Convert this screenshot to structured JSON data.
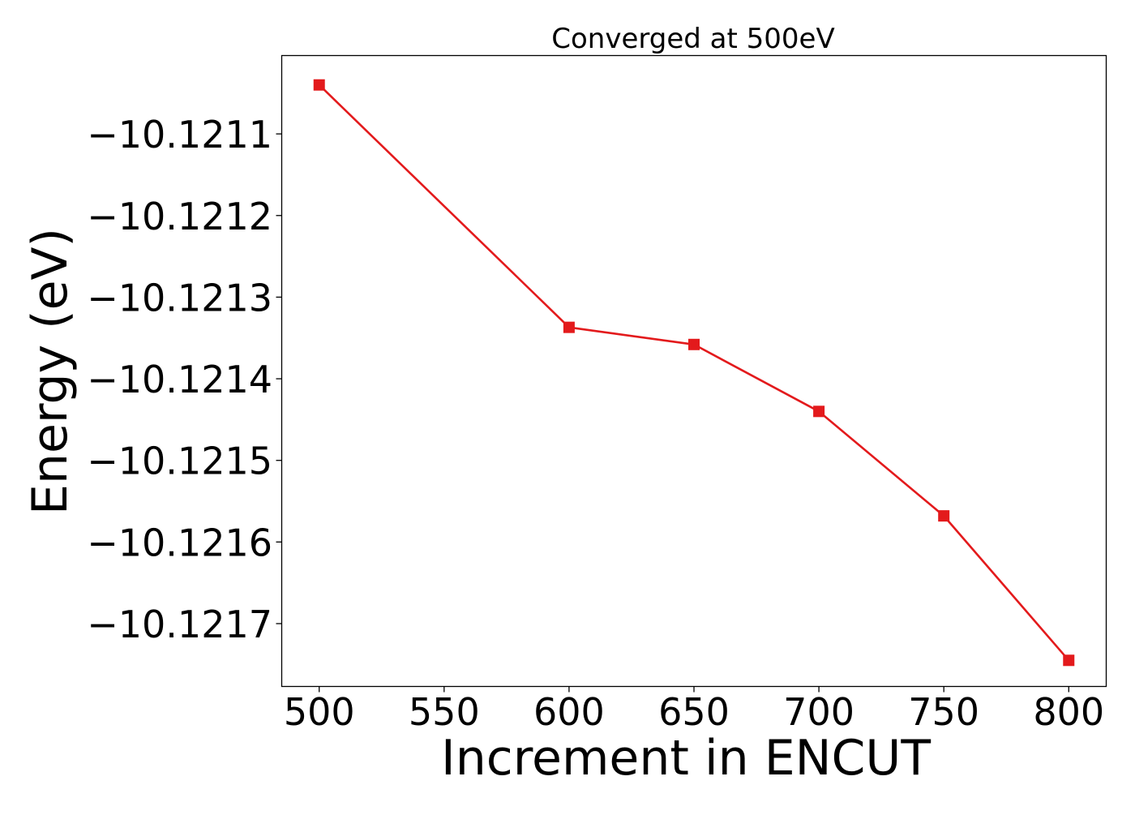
{
  "chart_data": {
    "type": "line",
    "title": "Converged at 500eV",
    "xlabel": "Increment in ENCUT",
    "ylabel": "Energy (eV)",
    "x": [
      500,
      600,
      650,
      700,
      750,
      800
    ],
    "series": [
      {
        "values": [
          -10.12104,
          -10.121337,
          -10.121358,
          -10.12144,
          -10.121568,
          -10.121745
        ],
        "color": "#e31a1c",
        "marker": "square"
      }
    ],
    "xticks": [
      500,
      550,
      600,
      650,
      700,
      750,
      800
    ],
    "xtick_labels": [
      "500",
      "550",
      "600",
      "650",
      "700",
      "750",
      "800"
    ],
    "yticks": [
      -10.1211,
      -10.1212,
      -10.1213,
      -10.1214,
      -10.1215,
      -10.1216,
      -10.1217
    ],
    "ytick_labels": [
      "−10.1211",
      "−10.1212",
      "−10.1213",
      "−10.1214",
      "−10.1215",
      "−10.1216",
      "−10.1217"
    ],
    "xlim": [
      485,
      815
    ],
    "ylim": [
      -10.121777,
      -10.121004
    ],
    "grid": false,
    "legend": false
  }
}
